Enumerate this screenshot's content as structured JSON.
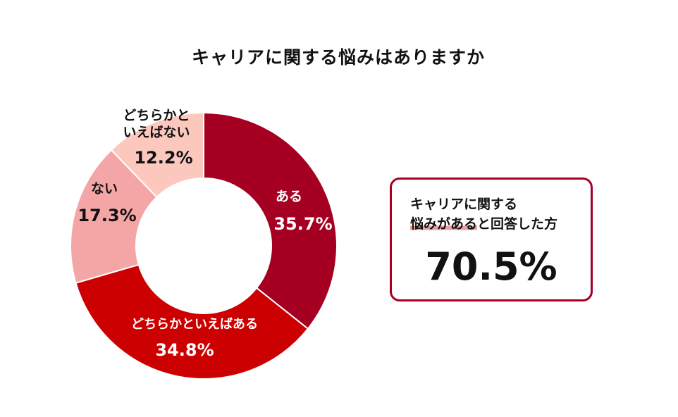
{
  "chart_data": {
    "type": "pie",
    "variant": "donut",
    "title": "キャリアに関する悩みはありますか",
    "slices": [
      {
        "label": "ある",
        "value": 35.7,
        "value_label": "35.7%",
        "color": "#a50021"
      },
      {
        "label": "どちらかといえばある",
        "value": 34.8,
        "value_label": "34.8%",
        "color": "#cc0000"
      },
      {
        "label": "ない",
        "value": 17.3,
        "value_label": "17.3%",
        "color": "#f4a6a6"
      },
      {
        "label": "どちらかと\nいえばない",
        "value": 12.2,
        "value_label": "12.2%",
        "color": "#fcc8be"
      }
    ]
  },
  "summary": {
    "line1": "キャリアに関する",
    "line2_highlight": "悩みがある",
    "line2_rest": "と回答した方",
    "value": "70.5%",
    "border_color": "#a50021",
    "highlight_color": "#e8a0a0"
  }
}
